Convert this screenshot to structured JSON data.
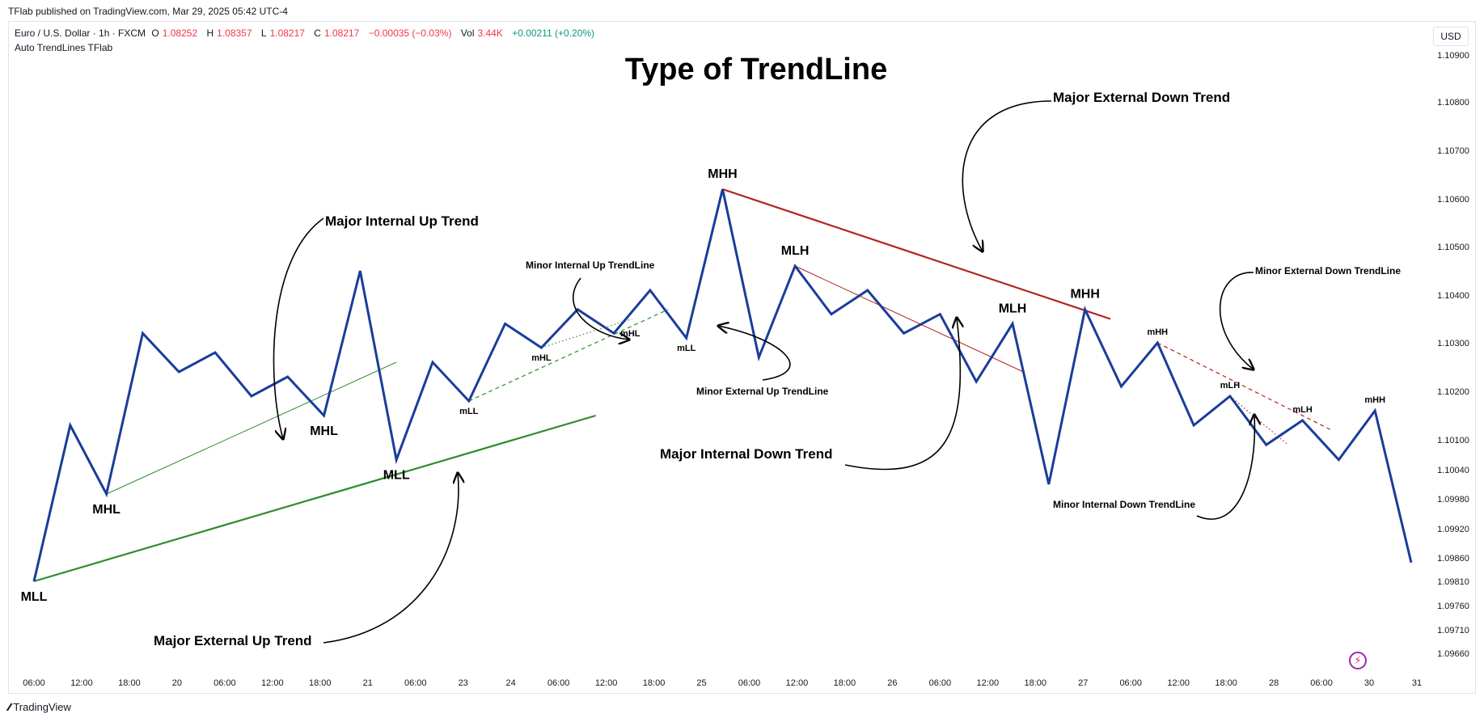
{
  "publisher": "TFlab published on TradingView.com, Mar 29, 2025 05:42 UTC-4",
  "legend": {
    "symbol": "Euro / U.S. Dollar · 1h · FXCM",
    "open_label": "O",
    "open": "1.08252",
    "high_label": "H",
    "high": "1.08357",
    "low_label": "L",
    "low": "1.08217",
    "close_label": "C",
    "close": "1.08217",
    "change": "−0.00035 (−0.03%)",
    "vol_label": "Vol",
    "vol": "3.44K",
    "perf": "+0.00211 (+0.20%)"
  },
  "indicator": "Auto TrendLines TFlab",
  "currency": "USD",
  "brand": "TradingView",
  "colors": {
    "price": "#1a3d99",
    "green": "#2e8b2e",
    "red": "#b22222",
    "text": "#131722",
    "axis": "#131722"
  },
  "chart_data": {
    "type": "line",
    "title": "Type of TrendLine",
    "y_axis_ticks": [
      "1.10900",
      "1.10800",
      "1.10700",
      "1.10600",
      "1.10500",
      "1.10400",
      "1.10300",
      "1.10200",
      "1.10100",
      "1.10040",
      "1.09980",
      "1.09920",
      "1.09860",
      "1.09810",
      "1.09760",
      "1.09710",
      "1.09660"
    ],
    "x_axis_ticks": [
      "06:00",
      "12:00",
      "18:00",
      "20",
      "06:00",
      "12:00",
      "18:00",
      "21",
      "06:00",
      "23",
      "24",
      "06:00",
      "12:00",
      "18:00",
      "25",
      "06:00",
      "12:00",
      "18:00",
      "26",
      "06:00",
      "12:00",
      "18:00",
      "27",
      "06:00",
      "12:00",
      "18:00",
      "28",
      "06:00",
      "30",
      "31"
    ],
    "price_path": [
      1.0981,
      1.1013,
      1.0999,
      1.1032,
      1.1024,
      1.1028,
      1.1019,
      1.1023,
      1.1015,
      1.1045,
      1.1006,
      1.1026,
      1.1018,
      1.1034,
      1.1029,
      1.1037,
      1.1032,
      1.1041,
      1.1031,
      1.1062,
      1.1027,
      1.1046,
      1.1036,
      1.1041,
      1.1032,
      1.1036,
      1.1022,
      1.1034,
      1.1001,
      1.1037,
      1.1021,
      1.103,
      1.1013,
      1.1019,
      1.1009,
      1.1014,
      1.1006,
      1.1016,
      1.0985
    ],
    "trendlines": [
      {
        "name": "Major External Up Trend",
        "style": "solid-thick",
        "color": "green",
        "from": [
          0,
          1.0981
        ],
        "to": [
          15.5,
          1.1015
        ]
      },
      {
        "name": "Major Internal Up Trend",
        "style": "solid-thin",
        "color": "green",
        "from": [
          2,
          1.0999
        ],
        "to": [
          10,
          1.1026
        ]
      },
      {
        "name": "Minor External Up TrendLine",
        "style": "dashed",
        "color": "green",
        "from": [
          12,
          1.1018
        ],
        "to": [
          17.5,
          1.1037
        ]
      },
      {
        "name": "Minor Internal Up TrendLine",
        "style": "dotted",
        "color": "green",
        "from": [
          14,
          1.1029
        ],
        "to": [
          16.5,
          1.1035
        ]
      },
      {
        "name": "Major External Down Trend",
        "style": "solid-thick",
        "color": "red",
        "from": [
          19,
          1.1062
        ],
        "to": [
          29.7,
          1.1035
        ]
      },
      {
        "name": "Major Internal Down Trend",
        "style": "solid-thin",
        "color": "red",
        "from": [
          21,
          1.1046
        ],
        "to": [
          27.3,
          1.1024
        ]
      },
      {
        "name": "Minor External Down TrendLine",
        "style": "dashed",
        "color": "red",
        "from": [
          31,
          1.103
        ],
        "to": [
          35.8,
          1.1012
        ]
      },
      {
        "name": "Minor Internal Down TrendLine",
        "style": "dotted",
        "color": "red",
        "from": [
          33,
          1.1019
        ],
        "to": [
          34.6,
          1.1009
        ]
      }
    ],
    "point_labels": [
      {
        "text": "MLL",
        "i": 0,
        "pos": "below"
      },
      {
        "text": "MHL",
        "i": 2,
        "pos": "below"
      },
      {
        "text": "MHL",
        "i": 8,
        "pos": "below"
      },
      {
        "text": "MLL",
        "i": 10,
        "pos": "below"
      },
      {
        "text": "mLL",
        "i": 12,
        "pos": "below"
      },
      {
        "text": "mHL",
        "i": 14,
        "pos": "below"
      },
      {
        "text": "mHL",
        "i": 16,
        "pos": "right"
      },
      {
        "text": "mLL",
        "i": 18,
        "pos": "below"
      },
      {
        "text": "MHH",
        "i": 19,
        "pos": "above"
      },
      {
        "text": "MLH",
        "i": 21,
        "pos": "above"
      },
      {
        "text": "MLH",
        "i": 27,
        "pos": "above"
      },
      {
        "text": "MHH",
        "i": 29,
        "pos": "above"
      },
      {
        "text": "mHH",
        "i": 31,
        "pos": "above"
      },
      {
        "text": "mLH",
        "i": 33,
        "pos": "above"
      },
      {
        "text": "mLH",
        "i": 35,
        "pos": "above"
      },
      {
        "text": "mHH",
        "i": 37,
        "pos": "above"
      }
    ],
    "annotations": [
      "Major Internal Up Trend",
      "Major External Up Trend",
      "Minor Internal Up TrendLine",
      "Minor External Up TrendLine",
      "Major External Down Trend",
      "Major Internal Down Trend",
      "Minor  External Down TrendLine",
      "Minor Internal Down TrendLine"
    ]
  }
}
